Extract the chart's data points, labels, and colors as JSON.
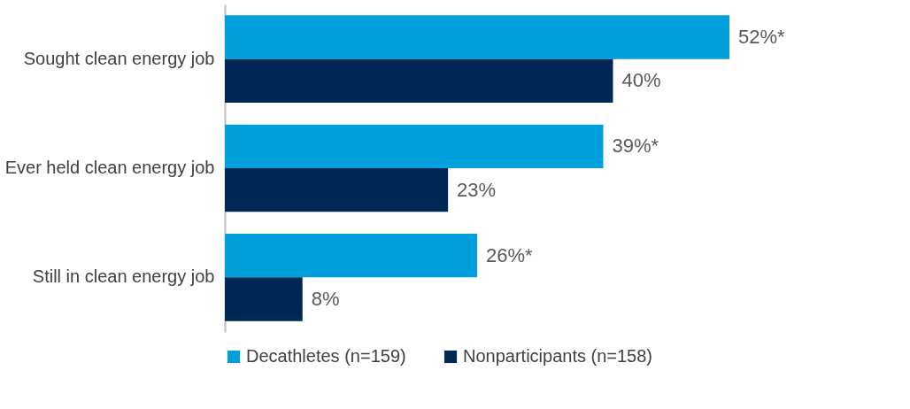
{
  "chart_data": {
    "type": "bar",
    "orientation": "horizontal",
    "categories": [
      "Sought clean energy job",
      "Ever held clean energy job",
      "Still in clean energy job"
    ],
    "series": [
      {
        "name": "Decathletes (n=159)",
        "color": "#00a0dc",
        "values": [
          52,
          39,
          26
        ],
        "value_labels": [
          "52%*",
          "39%*",
          "26%*"
        ]
      },
      {
        "name": "Nonparticipants (n=158)",
        "color": "#002855",
        "values": [
          40,
          23,
          8
        ],
        "value_labels": [
          "40%",
          "23%",
          "8%"
        ]
      }
    ],
    "legend": "bottom",
    "grid": false,
    "tick_labels": "y"
  }
}
